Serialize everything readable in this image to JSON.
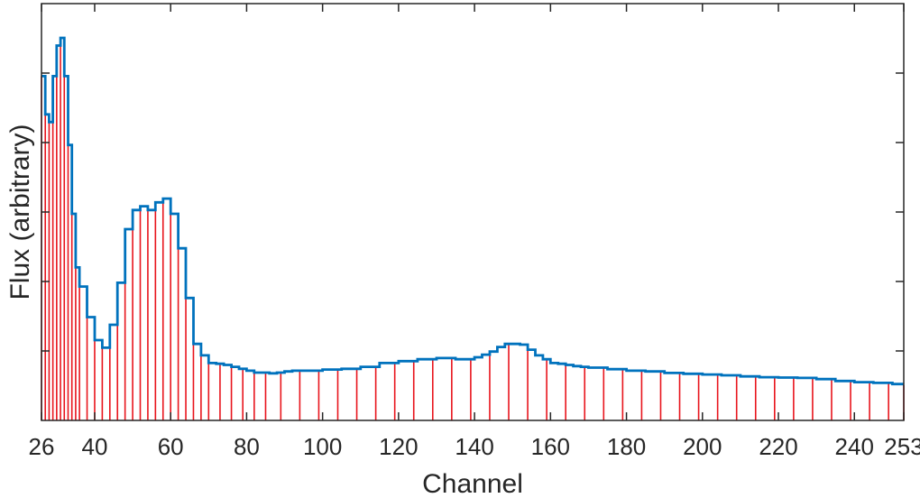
{
  "chart_data": {
    "type": "line",
    "title": "",
    "xlabel": "Channel",
    "ylabel": "Flux (arbitrary)",
    "xlim": [
      26,
      253
    ],
    "ylim": [
      0,
      1
    ],
    "grid": false,
    "legend": "none",
    "x_ticks": [
      "26",
      "40",
      "60",
      "80",
      "100",
      "120",
      "140",
      "160",
      "180",
      "200",
      "220",
      "240",
      "253"
    ],
    "y_tick_count": 6,
    "colors": {
      "stairs": "#0072BD",
      "bin_edges": "#E8141C",
      "axes": "#262626"
    },
    "series": [
      {
        "style": "stairs",
        "x": [
          26,
          27,
          28,
          29,
          30,
          31,
          32,
          33,
          34,
          35,
          36,
          38,
          40,
          42,
          44,
          46,
          48,
          50,
          52,
          54,
          56,
          58,
          60,
          62,
          64,
          66,
          68,
          70,
          72,
          74,
          76,
          78,
          80,
          82,
          84,
          86,
          88,
          90,
          92,
          95,
          100,
          105,
          110,
          115,
          120,
          125,
          130,
          135,
          140,
          142,
          144,
          146,
          148,
          150,
          152,
          154,
          156,
          158,
          160,
          162,
          164,
          166,
          168,
          170,
          175,
          180,
          185,
          190,
          195,
          200,
          205,
          210,
          215,
          220,
          225,
          230,
          235,
          240,
          245,
          250,
          253
        ],
        "y": [
          0.9,
          0.8,
          0.78,
          0.9,
          0.98,
          1.0,
          0.9,
          0.72,
          0.54,
          0.4,
          0.35,
          0.27,
          0.21,
          0.19,
          0.25,
          0.36,
          0.5,
          0.55,
          0.56,
          0.55,
          0.57,
          0.58,
          0.54,
          0.45,
          0.32,
          0.2,
          0.17,
          0.15,
          0.148,
          0.145,
          0.14,
          0.135,
          0.13,
          0.125,
          0.125,
          0.123,
          0.125,
          0.128,
          0.13,
          0.13,
          0.133,
          0.135,
          0.14,
          0.15,
          0.155,
          0.16,
          0.163,
          0.16,
          0.165,
          0.172,
          0.18,
          0.192,
          0.2,
          0.2,
          0.198,
          0.185,
          0.17,
          0.16,
          0.15,
          0.148,
          0.145,
          0.142,
          0.14,
          0.138,
          0.134,
          0.13,
          0.128,
          0.124,
          0.122,
          0.12,
          0.118,
          0.115,
          0.113,
          0.112,
          0.111,
          0.108,
          0.103,
          0.1,
          0.098,
          0.095,
          0.092
        ]
      },
      {
        "style": "stem",
        "x": [
          26,
          27,
          28,
          29,
          30,
          31,
          32,
          33,
          34,
          35,
          36,
          38,
          40,
          42,
          44,
          46,
          48,
          50,
          52,
          54,
          56,
          58,
          60,
          62,
          64,
          66,
          68,
          70,
          73,
          76,
          79,
          82,
          85,
          89,
          94,
          99,
          104,
          109,
          114,
          119,
          124,
          129,
          134,
          139,
          144,
          149,
          154,
          159,
          164,
          169,
          174,
          179,
          184,
          189,
          194,
          199,
          204,
          209,
          214,
          219,
          224,
          229,
          234,
          239,
          244,
          249,
          253
        ]
      }
    ]
  }
}
